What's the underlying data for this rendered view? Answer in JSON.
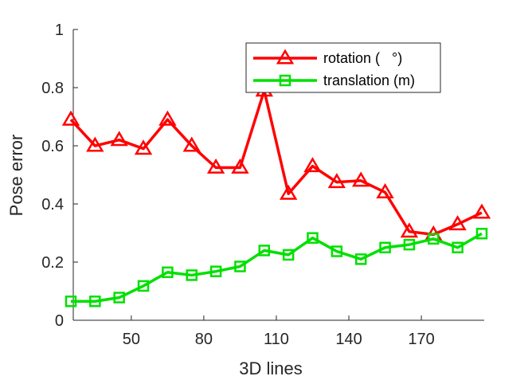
{
  "chart_data": {
    "type": "line",
    "xlabel": "3D lines",
    "ylabel": "Pose error",
    "xlim": [
      26,
      196
    ],
    "ylim": [
      0,
      1
    ],
    "xticks": [
      50,
      80,
      110,
      140,
      170
    ],
    "yticks": [
      0,
      0.2,
      0.4,
      0.6,
      0.8,
      1
    ],
    "ytick_labels": [
      "0",
      "0.2",
      "0.4",
      "0.6",
      "0.8",
      "1"
    ],
    "grid": false,
    "legend_position": "top-right",
    "x": [
      25,
      35,
      45,
      55,
      65,
      75,
      85,
      95,
      105,
      115,
      125,
      135,
      145,
      155,
      165,
      175,
      185,
      195
    ],
    "series": [
      {
        "name": "rotation (   °)",
        "color": "#ff0000",
        "marker": "triangle",
        "values": [
          0.69,
          0.6,
          0.62,
          0.59,
          0.69,
          0.6,
          0.525,
          0.525,
          0.79,
          0.435,
          0.53,
          0.475,
          0.48,
          0.44,
          0.305,
          0.295,
          0.33,
          0.37
        ]
      },
      {
        "name": "translation (m)",
        "color": "#00e000",
        "marker": "square",
        "values": [
          0.065,
          0.065,
          0.078,
          0.118,
          0.165,
          0.155,
          0.168,
          0.185,
          0.24,
          0.225,
          0.283,
          0.237,
          0.21,
          0.25,
          0.26,
          0.28,
          0.25,
          0.298
        ]
      }
    ]
  }
}
